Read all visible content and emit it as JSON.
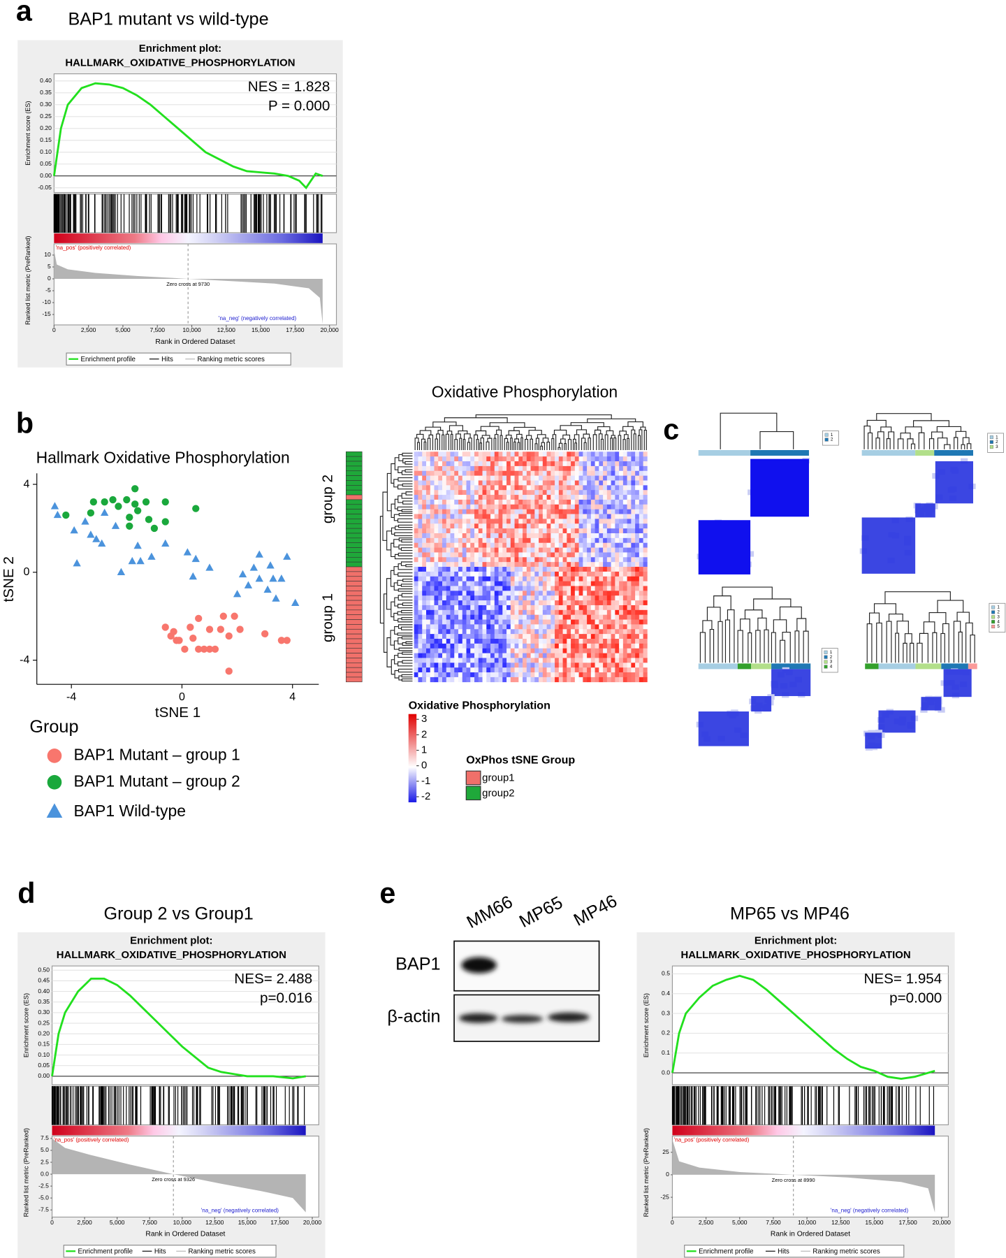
{
  "panel_labels": [
    "a",
    "b",
    "c",
    "d",
    "e"
  ],
  "chart_data": [
    {
      "type": "enrichment",
      "heading": "BAP1 mutant vs wild-type",
      "title": "Enrichment plot:",
      "subtitle": "HALLMARK_OXIDATIVE_PHOSPHORYLATION",
      "annotations": [
        "NES = 1.828",
        "P = 0.000"
      ],
      "ylabel": "Enrichment score (ES)",
      "y2label": "Ranked list metric (PreRanked)",
      "xlabel": "Rank in Ordered Dataset",
      "pos_label": "'na_pos' (positively correlated)",
      "neg_label": "'na_neg' (negatively correlated)",
      "zero_label": "Zero cross at 9730",
      "xlim": [
        0,
        20500
      ],
      "xticks": [
        0,
        {
          "value": 2500,
          "label": "2,500"
        },
        {
          "value": 5000,
          "label": "5,000"
        },
        {
          "value": 7500,
          "label": "7,500"
        },
        {
          "value": 10000,
          "label": "10,000"
        },
        {
          "value": 12500,
          "label": "12,500"
        },
        {
          "value": 15000,
          "label": "15,000"
        },
        {
          "value": 17500,
          "label": "17,500"
        },
        {
          "value": 20000,
          "label": "20,000"
        }
      ],
      "ylim": [
        -0.07,
        0.43
      ],
      "yticks": [
        {
          "value": 0.4,
          "label": "0.40"
        },
        {
          "value": 0.35,
          "label": "0.35"
        },
        {
          "value": 0.3,
          "label": "0.30"
        },
        {
          "value": 0.25,
          "label": "0.25"
        },
        {
          "value": 0.2,
          "label": "0.20"
        },
        {
          "value": 0.15,
          "label": "0.15"
        },
        {
          "value": 0.1,
          "label": "0.10"
        },
        {
          "value": 0.05,
          "label": "0.05"
        },
        {
          "value": 0,
          "label": "0.00"
        },
        {
          "value": -0.05,
          "label": "-0.05"
        }
      ],
      "y2lim": [
        -19.4,
        14.7
      ],
      "y2ticks": [
        10,
        5,
        0,
        -5,
        -10,
        -15
      ],
      "series": [
        {
          "name": "Enrichment profile",
          "color": "#22e01e",
          "x": [
            0,
            500,
            1000,
            2000,
            3000,
            4000,
            5000,
            6000,
            7000,
            8000,
            9000,
            10000,
            11000,
            12000,
            13000,
            14000,
            15000,
            16000,
            17000,
            17800,
            18300,
            19000,
            19500
          ],
          "values": [
            0,
            0.2,
            0.3,
            0.37,
            0.39,
            0.385,
            0.37,
            0.34,
            0.3,
            0.25,
            0.2,
            0.15,
            0.1,
            0.07,
            0.04,
            0.02,
            0.015,
            0.01,
            0,
            -0.02,
            -0.05,
            0.01,
            0
          ]
        },
        {
          "name": "Hits",
          "color": "#000000"
        },
        {
          "name": "Ranking metric scores",
          "color": "#b4b4b4",
          "axis": "y2",
          "x": [
            0,
            200,
            1000,
            3000,
            6000,
            9730,
            13000,
            16000,
            18500,
            19300,
            19500
          ],
          "values": [
            12,
            6,
            4,
            2.5,
            1.2,
            0,
            -1,
            -2,
            -4,
            -8,
            -19
          ]
        }
      ]
    },
    {
      "type": "scatter",
      "title": "Hallmark Oxidative Phosphorylation",
      "xlabel": "tSNE 1",
      "ylabel": "tSNE 2",
      "legend_title": "Group",
      "xlim": [
        -5.25,
        4.95
      ],
      "ylim": [
        -5.1,
        4.5
      ],
      "xticks": [
        -4,
        0,
        4
      ],
      "yticks": [
        -4,
        0,
        4
      ],
      "series": [
        {
          "name": "BAP1 Mutant – group 1",
          "color": "#f8766d",
          "marker": "circle",
          "x": [
            -0.6,
            -0.4,
            -0.2,
            -0.3,
            -0.1,
            0.3,
            0.4,
            0.6,
            1.0,
            0.8,
            1.0,
            1.2,
            1.4,
            1.5,
            1.7,
            1.7,
            1.9,
            2.1,
            3.0,
            3.6,
            3.8,
            0.6,
            0.1
          ],
          "values": [
            -2.5,
            -2.9,
            -3.1,
            -2.7,
            -3.1,
            -2.5,
            -3.0,
            -2.1,
            -2.6,
            -3.5,
            -3.5,
            -3.5,
            -2.6,
            -2.0,
            -2.9,
            -4.5,
            -2.0,
            -2.6,
            -2.8,
            -3.1,
            -3.1,
            -3.5,
            -3.5
          ]
        },
        {
          "name": "BAP1 Mutant – group 2",
          "color": "#1aa83c",
          "marker": "circle",
          "x": [
            -4.2,
            -3.2,
            -2.8,
            -3.3,
            -2.5,
            -2.3,
            -2.0,
            -1.7,
            -1.9,
            -1.3,
            -1.9,
            -1.6,
            -1.2,
            -1.7,
            -0.6,
            -1.0,
            -0.6,
            0.5
          ],
          "values": [
            2.6,
            3.2,
            3.2,
            2.7,
            3.3,
            3.0,
            3.3,
            3.1,
            2.5,
            3.2,
            2.1,
            2.8,
            2.4,
            3.8,
            3.2,
            2.0,
            2.3,
            2.9
          ]
        },
        {
          "name": "BAP1 Wild-type",
          "color": "#4b93dc",
          "marker": "triangle",
          "x": [
            -4.6,
            -4.5,
            -3.9,
            -3.5,
            -3.3,
            -3.1,
            -2.9,
            -3.8,
            -2.8,
            -2.4,
            -2.2,
            -1.8,
            -1.6,
            -1.5,
            -1.1,
            -0.6,
            0.2,
            0.5,
            0.4,
            1.0,
            2.2,
            2.4,
            2.0,
            2.8,
            2.6,
            2.8,
            3.1,
            3.3,
            3.4,
            3.8,
            3.6,
            4.1,
            3.2
          ],
          "values": [
            3.0,
            2.6,
            1.9,
            2.3,
            1.7,
            1.5,
            1.3,
            0.4,
            2.7,
            2.1,
            0.0,
            0.5,
            1.2,
            0.5,
            0.7,
            1.3,
            0.9,
            0.6,
            -0.2,
            0.2,
            -0.1,
            -0.6,
            -1.0,
            0.8,
            0.2,
            -0.3,
            -0.8,
            -0.3,
            -1.2,
            0.7,
            -0.3,
            -1.4,
            0.3
          ]
        }
      ]
    },
    {
      "type": "heatmap",
      "title": "Oxidative Phosphorylation",
      "row_groups": [
        "group 2",
        "group 1"
      ],
      "colorbar_title": "Oxidative Phosphorylation",
      "clim": [
        -2.36,
        3.34
      ],
      "cticks": [
        3,
        2,
        1,
        0,
        -1,
        -2
      ],
      "legend_title": "OxPhos tSNE Group",
      "series": [
        {
          "name": "group1",
          "color": "#f0706a"
        },
        {
          "name": "group2",
          "color": "#1fa83a"
        }
      ]
    },
    {
      "type": "enrichment",
      "heading": "Group 2 vs Group1",
      "title": "Enrichment plot:",
      "subtitle": "HALLMARK_OXIDATIVE_PHOSPHORYLATION",
      "annotations": [
        "NES= 2.488",
        "p=0.016"
      ],
      "ylabel": "Enrichment score (ES)",
      "y2label": "Ranked list metric (PreRanked)",
      "xlabel": "Rank in Ordered Dataset",
      "pos_label": "'na_pos' (positively correlated)",
      "neg_label": "'na_neg' (negatively correlated)",
      "zero_label": "Zero cross at 9326",
      "xlim": [
        0,
        20500
      ],
      "xticks": [
        0,
        {
          "value": 2500,
          "label": "2,500"
        },
        {
          "value": 5000,
          "label": "5,000"
        },
        {
          "value": 7500,
          "label": "7,500"
        },
        {
          "value": 10000,
          "label": "10,000"
        },
        {
          "value": 12500,
          "label": "12,500"
        },
        {
          "value": 15000,
          "label": "15,000"
        },
        {
          "value": 17500,
          "label": "17,500"
        },
        {
          "value": 20000,
          "label": "20,000"
        }
      ],
      "ylim": [
        -0.04,
        0.52
      ],
      "yticks": [
        {
          "value": 0.5,
          "label": "0.50"
        },
        {
          "value": 0.45,
          "label": "0.45"
        },
        {
          "value": 0.4,
          "label": "0.40"
        },
        {
          "value": 0.35,
          "label": "0.35"
        },
        {
          "value": 0.3,
          "label": "0.30"
        },
        {
          "value": 0.25,
          "label": "0.25"
        },
        {
          "value": 0.2,
          "label": "0.20"
        },
        {
          "value": 0.15,
          "label": "0.15"
        },
        {
          "value": 0.1,
          "label": "0.10"
        },
        {
          "value": 0.05,
          "label": "0.05"
        },
        {
          "value": 0,
          "label": "0.00"
        }
      ],
      "y2lim": [
        -9,
        8
      ],
      "y2ticks": [
        7.5,
        {
          "value": 5,
          "label": "5.0"
        },
        2.5,
        {
          "value": 0,
          "label": "0.0"
        },
        -2.5,
        {
          "value": -5,
          "label": "-5.0"
        },
        -7.5
      ],
      "series": [
        {
          "name": "Enrichment profile",
          "color": "#22e01e",
          "x": [
            0,
            500,
            1000,
            2000,
            3000,
            4000,
            5000,
            6000,
            7000,
            8000,
            9000,
            10000,
            11000,
            12000,
            13000,
            14000,
            15000,
            17000,
            18500,
            19500
          ],
          "values": [
            0,
            0.2,
            0.3,
            0.4,
            0.46,
            0.46,
            0.43,
            0.38,
            0.32,
            0.26,
            0.2,
            0.14,
            0.09,
            0.04,
            0.02,
            0.01,
            0,
            0,
            -0.01,
            0
          ]
        },
        {
          "name": "Hits",
          "color": "#000000"
        },
        {
          "name": "Ranking metric scores",
          "color": "#b4b4b4",
          "axis": "y2",
          "x": [
            0,
            1000,
            3000,
            6000,
            9326,
            13000,
            16000,
            18500,
            19500
          ],
          "values": [
            7.5,
            5.5,
            4,
            2,
            0,
            -2,
            -3.5,
            -5,
            -8
          ]
        }
      ]
    },
    {
      "type": "enrichment",
      "heading": "MP65 vs MP46",
      "title": "Enrichment plot:",
      "subtitle": "HALLMARK_OXIDATIVE_PHOSPHORYLATION",
      "annotations": [
        "NES= 1.954",
        "p=0.000"
      ],
      "ylabel": "Enrichment score (ES)",
      "y2label": "Ranked list metric (PreRanked)",
      "xlabel": "Rank in Ordered Dataset",
      "pos_label": "'na_pos' (positively correlated)",
      "neg_label": "'na_neg' (negatively correlated)",
      "zero_label": "Zero cross at 8990",
      "xlim": [
        0,
        20500
      ],
      "xticks": [
        0,
        {
          "value": 2500,
          "label": "2,500"
        },
        {
          "value": 5000,
          "label": "5,000"
        },
        {
          "value": 7500,
          "label": "7,500"
        },
        {
          "value": 10000,
          "label": "10,000"
        },
        {
          "value": 12500,
          "label": "12,500"
        },
        {
          "value": 15000,
          "label": "15,000"
        },
        {
          "value": 17500,
          "label": "17,500"
        },
        {
          "value": 20000,
          "label": "20,000"
        }
      ],
      "ylim": [
        -0.06,
        0.54
      ],
      "yticks": [
        0.5,
        0.4,
        0.3,
        0.2,
        0.1,
        {
          "value": 0,
          "label": "0.0"
        }
      ],
      "y2lim": [
        -47,
        43
      ],
      "y2ticks": [
        25,
        0,
        -25
      ],
      "series": [
        {
          "name": "Enrichment profile",
          "color": "#22e01e",
          "x": [
            0,
            500,
            1000,
            2000,
            3000,
            4000,
            5000,
            6000,
            7000,
            8000,
            9000,
            10000,
            11000,
            12000,
            13000,
            14000,
            15000,
            16000,
            17000,
            18000,
            19500
          ],
          "values": [
            0,
            0.2,
            0.3,
            0.38,
            0.44,
            0.47,
            0.49,
            0.47,
            0.42,
            0.36,
            0.3,
            0.24,
            0.18,
            0.12,
            0.07,
            0.03,
            0.01,
            -0.02,
            -0.03,
            -0.02,
            0.01
          ]
        },
        {
          "name": "Hits",
          "color": "#000000"
        },
        {
          "name": "Ranking metric scores",
          "color": "#b4b4b4",
          "axis": "y2",
          "x": [
            0,
            500,
            2000,
            5000,
            8990,
            13000,
            17000,
            19000,
            19500
          ],
          "values": [
            39,
            15,
            8,
            3,
            0,
            -3,
            -8,
            -15,
            -42
          ]
        }
      ]
    }
  ],
  "consensus": {
    "legends": [
      [
        "1",
        "2"
      ],
      [
        "1",
        "2",
        "3"
      ],
      [
        "1",
        "2",
        "3",
        "4"
      ],
      [
        "1",
        "2",
        "3",
        "4",
        "5"
      ]
    ]
  },
  "blot": {
    "lanes": [
      "MM66",
      "MP65",
      "MP46"
    ],
    "rows": [
      "BAP1",
      "β-actin"
    ]
  }
}
